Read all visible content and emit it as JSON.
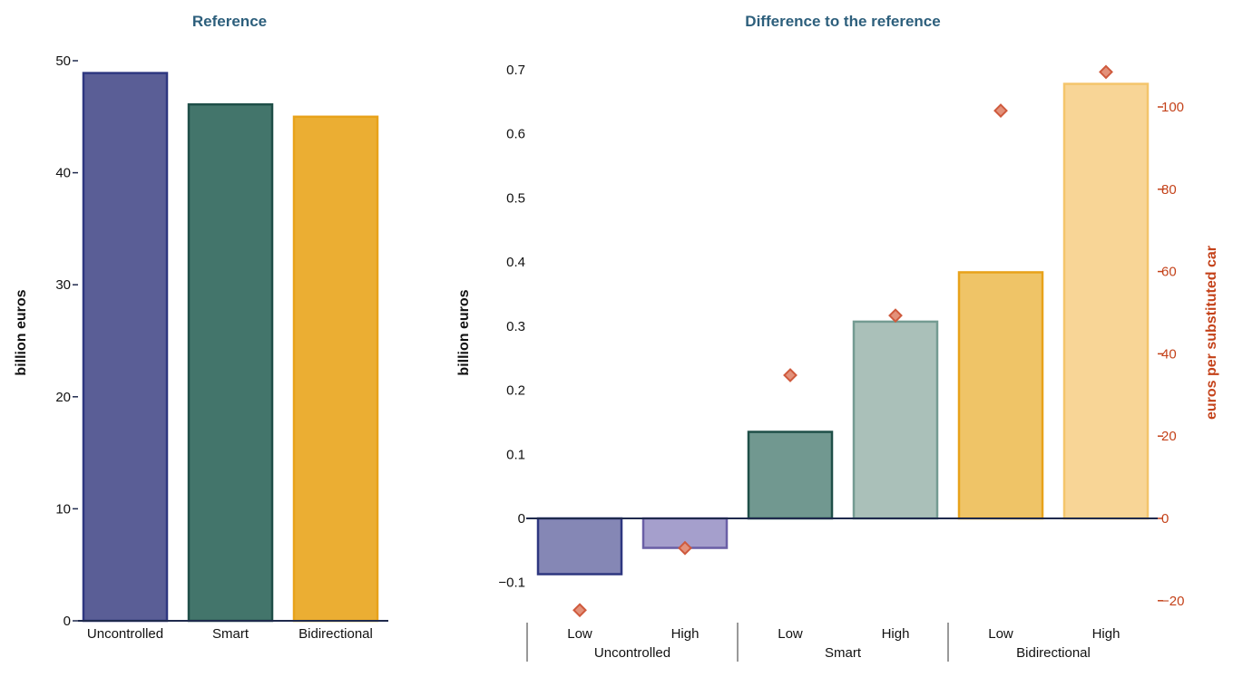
{
  "chart_data": [
    {
      "type": "bar",
      "title": "Reference",
      "ylabel": "billion euros",
      "xlabel": "",
      "ylim": [
        0,
        50
      ],
      "yticks": [
        0,
        10,
        20,
        30,
        40,
        50
      ],
      "categories": [
        "Uncontrolled",
        "Smart",
        "Bidirectional"
      ],
      "values": [
        48.9,
        46.1,
        45.0
      ],
      "colors": {
        "fill": [
          "#5a5e96",
          "#43756b",
          "#ebae33"
        ],
        "stroke": [
          "#2e3780",
          "#1f4f48",
          "#e8a21a"
        ]
      }
    },
    {
      "type": "bar",
      "title": "Difference to the reference",
      "ylabel": "billion euros",
      "ylabel_right": "euros per substituted car",
      "ylim": [
        -0.15,
        0.72
      ],
      "yticks": [
        -0.1,
        0,
        0.1,
        0.2,
        0.3,
        0.4,
        0.5,
        0.6,
        0.7
      ],
      "ytick_labels": [
        "−0.1",
        "0",
        "0.1",
        "0.2",
        "0.3",
        "0.4",
        "0.5",
        "0.6",
        "0.7"
      ],
      "ylim_right": [
        -24.2,
        110.1
      ],
      "yticks_right": [
        -20,
        0,
        20,
        40,
        60,
        80,
        100
      ],
      "ytick_labels_right": [
        "−20",
        "0",
        "20",
        "40",
        "60",
        "80",
        "100"
      ],
      "groups": [
        "Uncontrolled",
        "Smart",
        "Bidirectional"
      ],
      "categories": [
        "Low",
        "High",
        "Low",
        "High",
        "Low",
        "High"
      ],
      "series": [
        {
          "name": "billion euros",
          "axis": "left",
          "mark": "bar",
          "values": [
            -0.087,
            -0.046,
            0.135,
            0.307,
            0.384,
            0.678
          ]
        },
        {
          "name": "euros per substituted car",
          "axis": "right",
          "mark": "diamond",
          "values": [
            -22.3,
            -7.2,
            34.8,
            49.3,
            99.1,
            108.5
          ]
        }
      ],
      "colors": {
        "fill": [
          "#8587b5",
          "#a59fcc",
          "#719890",
          "#aac0b9",
          "#efc467",
          "#f8d596"
        ],
        "stroke": [
          "#2e3780",
          "#6a5fa6",
          "#1f4f48",
          "#749b92",
          "#e8a21a",
          "#f4c56b"
        ],
        "marker_fill": "#e3917a",
        "marker_stroke": "#cf5a3d",
        "right_axis": "#c4421a",
        "title": "#2d5f7c"
      }
    }
  ]
}
